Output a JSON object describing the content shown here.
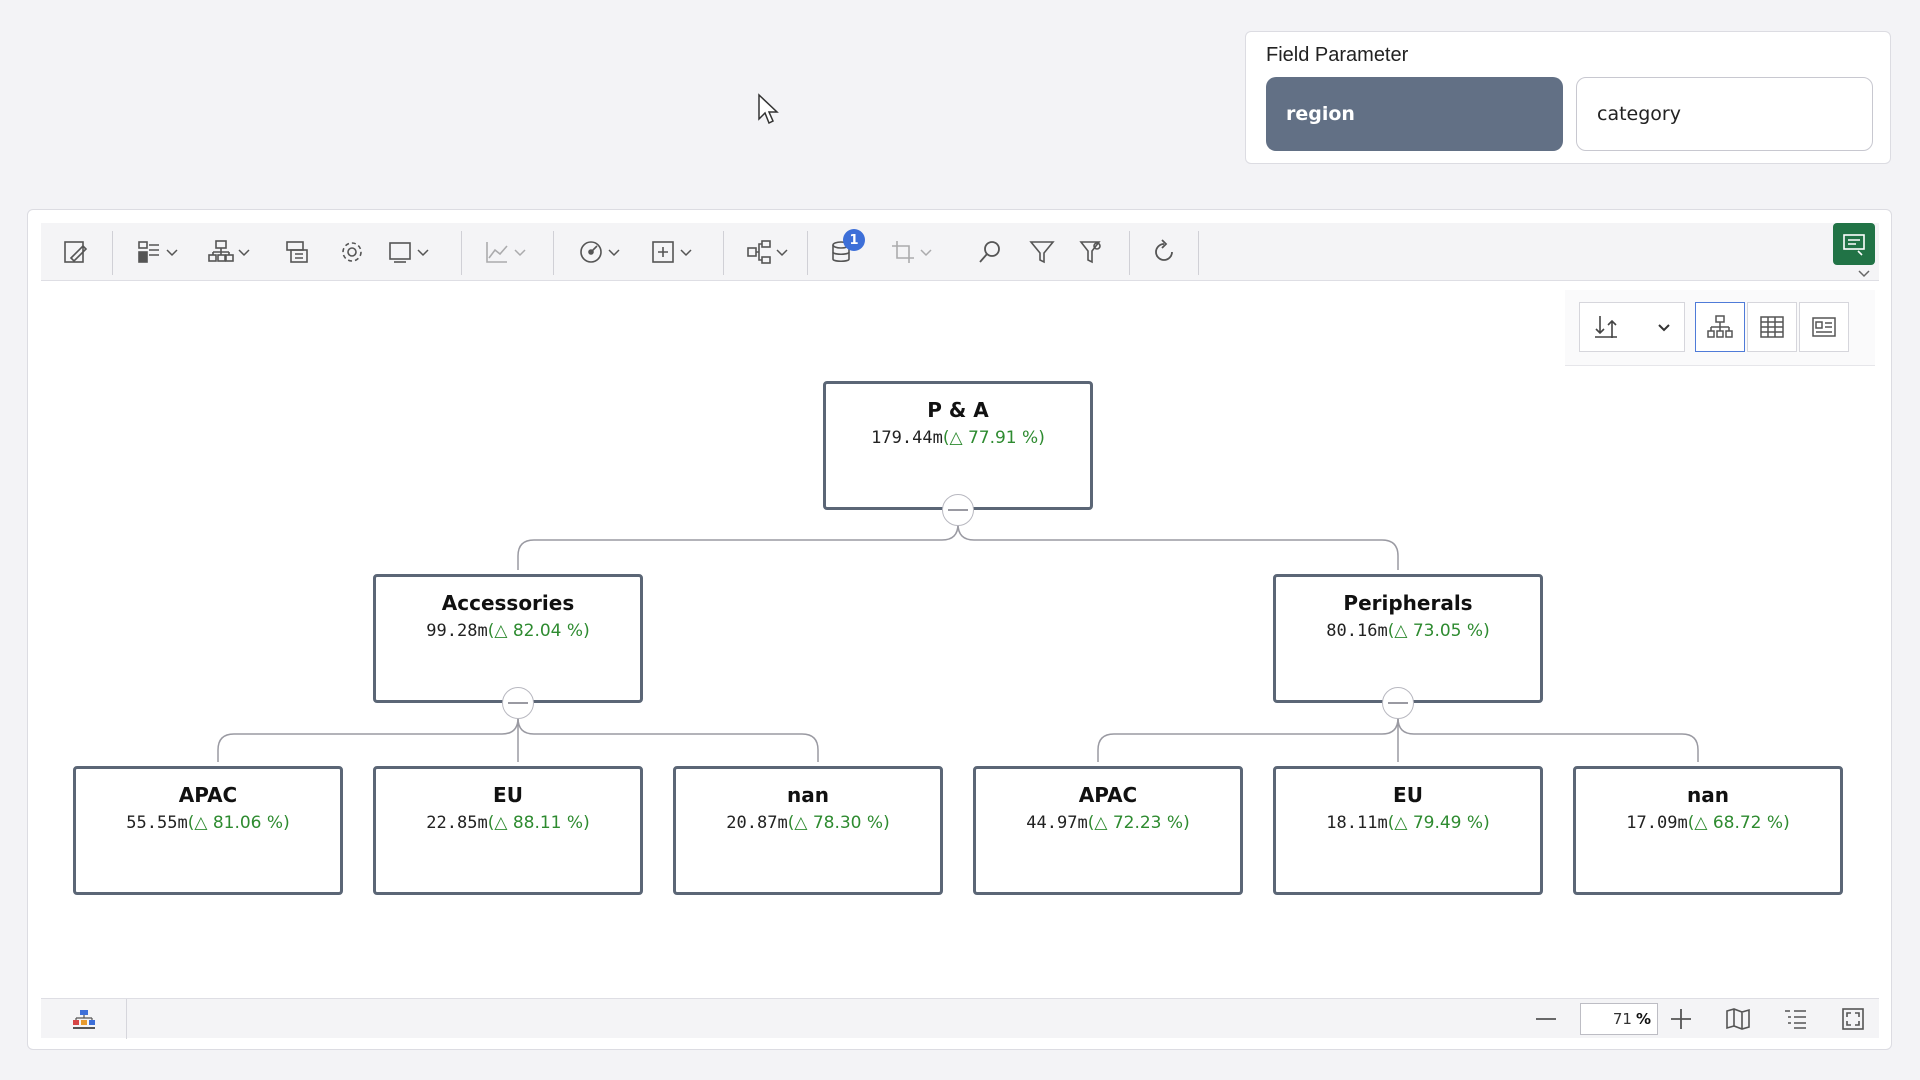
{
  "field_parameter": {
    "title": "Field Parameter",
    "options": [
      {
        "label": "region",
        "selected": true
      },
      {
        "label": "category",
        "selected": false
      }
    ]
  },
  "toolbar": {
    "icons": [
      "edit-icon",
      "layout-icon",
      "hierarchy-icon",
      "copy-icon",
      "gear-icon",
      "frame-icon",
      "chart-icon",
      "gauge-icon",
      "add-box-icon",
      "tree-layout-icon",
      "database-icon",
      "crop-icon",
      "search-icon",
      "filter-icon",
      "filter-options-icon",
      "refresh-icon"
    ],
    "database_badge": "1"
  },
  "tree": {
    "root": {
      "name": "P & A",
      "value": "179.44m",
      "delta": "77.91 %"
    },
    "level1": [
      {
        "name": "Accessories",
        "value": "99.28m",
        "delta": "82.04 %"
      },
      {
        "name": "Peripherals",
        "value": "80.16m",
        "delta": "73.05 %"
      }
    ],
    "level2": [
      {
        "name": "APAC",
        "value": "55.55m",
        "delta": "81.06 %"
      },
      {
        "name": "EU",
        "value": "22.85m",
        "delta": "88.11 %"
      },
      {
        "name": "nan",
        "value": "20.87m",
        "delta": "78.30 %"
      },
      {
        "name": "APAC",
        "value": "44.97m",
        "delta": "72.23 %"
      },
      {
        "name": "EU",
        "value": "18.11m",
        "delta": "79.49 %"
      },
      {
        "name": "nan",
        "value": "17.09m",
        "delta": "68.72 %"
      }
    ]
  },
  "bottom": {
    "zoom_value": "71",
    "zoom_unit": "%"
  },
  "colors": {
    "selected_param": "#627085",
    "positive_delta": "#2e8b30",
    "node_border": "#5b6676",
    "export_button": "#217346"
  }
}
